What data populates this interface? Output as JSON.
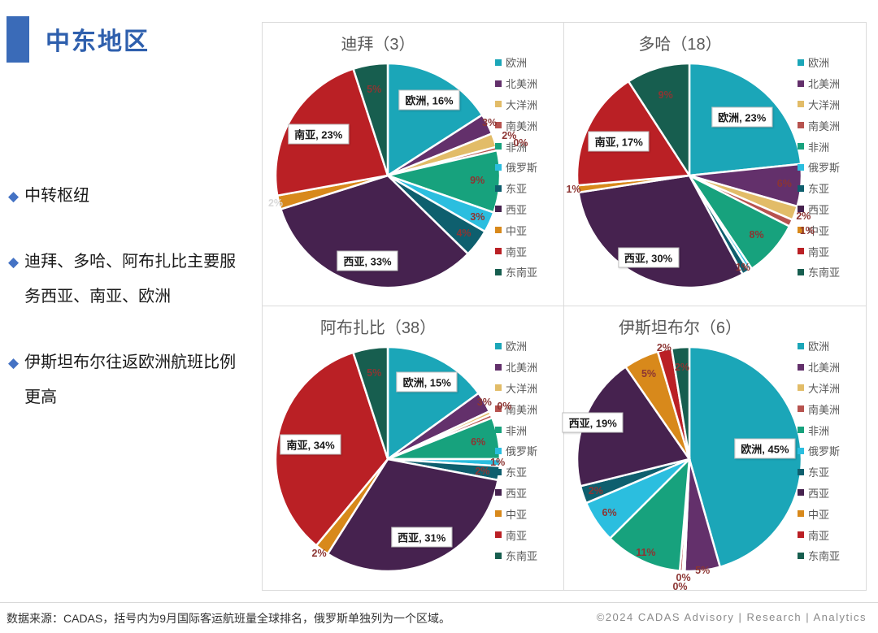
{
  "page": {
    "title": "中东地区",
    "accent_color": "#3A6BB8",
    "title_color": "#2E5FAD",
    "footer_note": "数据来源：CADAS，括号内为9月国际客运航班量全球排名，俄罗斯单独列为一个区域。",
    "copyright": "©2024 CADAS Advisory | Research | Analytics"
  },
  "icons": {
    "bullet_diamond": "◆"
  },
  "bullets": [
    {
      "text": "中转枢纽"
    },
    {
      "text": "迪拜、多哈、阿布扎比主要服务西亚、南亚、欧洲"
    },
    {
      "text": "伊斯坦布尔往返欧洲航班比例更高"
    }
  ],
  "legend_regions": [
    {
      "name": "欧洲",
      "color": "#1BA6B8"
    },
    {
      "name": "北美洲",
      "color": "#63306B"
    },
    {
      "name": "大洋洲",
      "color": "#E2BC68"
    },
    {
      "name": "南美洲",
      "color": "#B7534F"
    },
    {
      "name": "非洲",
      "color": "#17A27D"
    },
    {
      "name": "俄罗斯",
      "color": "#2BBEDF"
    },
    {
      "name": "东亚",
      "color": "#0E5F6E"
    },
    {
      "name": "西亚",
      "color": "#46224F"
    },
    {
      "name": "中亚",
      "color": "#D8891B"
    },
    {
      "name": "南亚",
      "color": "#BA2025"
    },
    {
      "name": "东南亚",
      "color": "#175E4F"
    }
  ],
  "label_colors": {
    "default": "#8C3533",
    "light": "#D9D9D9"
  },
  "chart_data": [
    {
      "type": "pie",
      "title": "迪拜（3）",
      "rank_in_title": 3,
      "legend_position": "right",
      "slices": [
        {
          "name": "欧洲",
          "value": 16,
          "label": {
            "text": "欧洲, 16%",
            "style": "box",
            "r": 0.77
          }
        },
        {
          "name": "北美洲",
          "value": 3,
          "label": {
            "text": "3%",
            "style": "plain",
            "r": 1.02
          }
        },
        {
          "name": "大洋洲",
          "value": 2,
          "label": {
            "text": "2%",
            "style": "plain",
            "r": 1.14
          }
        },
        {
          "name": "南美洲",
          "value": 0.5,
          "label": {
            "text": "0%",
            "style": "plain",
            "r": 1.22
          }
        },
        {
          "name": "非洲",
          "value": 9,
          "label": {
            "text": "9%",
            "style": "plain",
            "r": 0.8
          }
        },
        {
          "name": "俄罗斯",
          "value": 3,
          "label": {
            "text": "3%",
            "style": "plain",
            "r": 0.88
          }
        },
        {
          "name": "东亚",
          "value": 4,
          "label": {
            "text": "4%",
            "style": "plain",
            "r": 0.85
          }
        },
        {
          "name": "西亚",
          "value": 33,
          "label": {
            "text": "西亚, 33%",
            "style": "box",
            "r": 0.78
          }
        },
        {
          "name": "中亚",
          "value": 2,
          "label": {
            "text": "2%",
            "style": "plain",
            "r": 1.03,
            "color": "#D9D9D9"
          }
        },
        {
          "name": "南亚",
          "value": 23,
          "label": {
            "text": "南亚, 23%",
            "style": "box",
            "r": 0.72
          }
        },
        {
          "name": "东南亚",
          "value": 5,
          "label": {
            "text": "5%",
            "style": "plain",
            "r": 0.78
          }
        }
      ]
    },
    {
      "type": "pie",
      "title": "多哈（18）",
      "rank_in_title": 18,
      "legend_position": "right",
      "slices": [
        {
          "name": "欧洲",
          "value": 23,
          "label": {
            "text": "欧洲, 23%",
            "style": "box",
            "r": 0.7
          }
        },
        {
          "name": "北美洲",
          "value": 6,
          "label": {
            "text": "6%",
            "style": "plain",
            "r": 0.85
          }
        },
        {
          "name": "大洋洲",
          "value": 2,
          "label": {
            "text": "2%",
            "style": "plain",
            "r": 1.08
          }
        },
        {
          "name": "南美洲",
          "value": 1,
          "label": {
            "text": "1%",
            "style": "plain",
            "r": 1.16
          }
        },
        {
          "name": "非洲",
          "value": 8,
          "label": {
            "text": "8%",
            "style": "plain",
            "r": 0.8
          }
        },
        {
          "name": "俄罗斯",
          "value": 0.5
        },
        {
          "name": "东亚",
          "value": 1,
          "label": {
            "text": "1%",
            "style": "plain",
            "r": 0.95
          }
        },
        {
          "name": "西亚",
          "value": 30,
          "label": {
            "text": "西亚, 30%",
            "style": "box",
            "r": 0.82
          }
        },
        {
          "name": "中亚",
          "value": 1,
          "label": {
            "text": "1%",
            "style": "plain",
            "r": 1.04
          }
        },
        {
          "name": "南亚",
          "value": 17,
          "label": {
            "text": "南亚, 17%",
            "style": "box",
            "r": 0.7
          }
        },
        {
          "name": "东南亚",
          "value": 9,
          "label": {
            "text": "9%",
            "style": "plain",
            "r": 0.75
          }
        }
      ]
    },
    {
      "type": "pie",
      "title": "阿布扎比（38）",
      "rank_in_title": 38,
      "legend_position": "right",
      "slices": [
        {
          "name": "欧洲",
          "value": 15,
          "label": {
            "text": "欧洲, 15%",
            "style": "box",
            "r": 0.77
          }
        },
        {
          "name": "北美洲",
          "value": 3,
          "label": {
            "text": "3%",
            "style": "plain",
            "r": 1.0
          }
        },
        {
          "name": "大洋洲",
          "value": 0.5,
          "label": {
            "text": "0%",
            "style": "plain",
            "r": 1.14
          }
        },
        {
          "name": "南美洲",
          "value": 0.5
        },
        {
          "name": "非洲",
          "value": 6,
          "label": {
            "text": "6%",
            "style": "plain",
            "r": 0.82
          }
        },
        {
          "name": "俄罗斯",
          "value": 1,
          "label": {
            "text": "1%",
            "style": "plain",
            "r": 0.98
          }
        },
        {
          "name": "东亚",
          "value": 2,
          "label": {
            "text": "2%",
            "style": "plain",
            "r": 0.85
          }
        },
        {
          "name": "西亚",
          "value": 31,
          "label": {
            "text": "西亚, 31%",
            "style": "box",
            "r": 0.76
          }
        },
        {
          "name": "中亚",
          "value": 2,
          "label": {
            "text": "2%",
            "style": "plain",
            "r": 1.04
          }
        },
        {
          "name": "南亚",
          "value": 34,
          "label": {
            "text": "南亚, 34%",
            "style": "box",
            "r": 0.7
          }
        },
        {
          "name": "东南亚",
          "value": 5,
          "label": {
            "text": "5%",
            "style": "plain",
            "r": 0.78
          }
        }
      ]
    },
    {
      "type": "pie",
      "title": "伊斯坦布尔（6）",
      "rank_in_title": 6,
      "legend_position": "right",
      "slices": [
        {
          "name": "欧洲",
          "value": 45,
          "label": {
            "text": "欧洲, 45%",
            "style": "box",
            "r": 0.68
          }
        },
        {
          "name": "北美洲",
          "value": 5,
          "label": {
            "text": "5%",
            "style": "plain",
            "r": 1.0
          }
        },
        {
          "name": "大洋洲",
          "value": 0.3,
          "label": {
            "text": "0%",
            "style": "plain",
            "r": 1.06
          }
        },
        {
          "name": "南美洲",
          "value": 0.4,
          "label": {
            "text": "0%",
            "style": "plain",
            "r": 1.14
          }
        },
        {
          "name": "非洲",
          "value": 11,
          "label": {
            "text": "11%",
            "style": "plain",
            "r": 0.92
          }
        },
        {
          "name": "俄罗斯",
          "value": 6,
          "label": {
            "text": "6%",
            "style": "plain",
            "r": 0.86
          }
        },
        {
          "name": "东亚",
          "value": 2.5,
          "label": {
            "text": "2%",
            "style": "plain",
            "r": 0.88
          }
        },
        {
          "name": "西亚",
          "value": 19,
          "label": {
            "text": "西亚, 19%",
            "style": "box",
            "r": 0.92
          }
        },
        {
          "name": "中亚",
          "value": 5,
          "label": {
            "text": "5%",
            "style": "plain",
            "r": 0.84
          }
        },
        {
          "name": "南亚",
          "value": 2,
          "label": {
            "text": "2%",
            "style": "plain",
            "r": 1.02
          }
        },
        {
          "name": "东南亚",
          "value": 2.5,
          "label": {
            "text": "2%",
            "style": "plain",
            "r": 0.82
          }
        }
      ]
    }
  ]
}
